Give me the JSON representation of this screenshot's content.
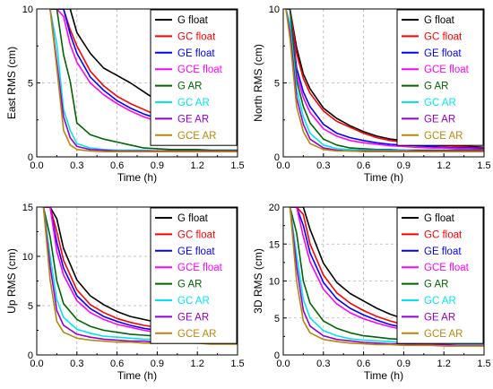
{
  "series_styles": [
    {
      "name": "G float",
      "color": "#000000"
    },
    {
      "name": "GC float",
      "color": "#ff0000"
    },
    {
      "name": "GE float",
      "color": "#0000ff"
    },
    {
      "name": "GCE float",
      "color": "#ff00ff"
    },
    {
      "name": "G AR",
      "color": "#006400"
    },
    {
      "name": "GC AR",
      "color": "#00e5ee"
    },
    {
      "name": "GE AR",
      "color": "#9400d3"
    },
    {
      "name": "GCE AR",
      "color": "#b8860b"
    }
  ],
  "chart_data": [
    {
      "type": "line",
      "title": "",
      "xlabel": "Time (h)",
      "ylabel": "East RMS (cm)",
      "xlim": [
        0,
        1.5
      ],
      "ylim": [
        0,
        10
      ],
      "xticks": [
        "0.0",
        "0.3",
        "0.6",
        "0.9",
        "1.2",
        "1.5"
      ],
      "yticks": [
        "0",
        "5",
        "10"
      ],
      "xtick_values": [
        0,
        0.3,
        0.6,
        0.9,
        1.2,
        1.5
      ],
      "ytick_values": [
        0,
        5,
        10
      ],
      "grid": true,
      "legend": "top-right",
      "x": [
        0.1,
        0.15,
        0.2,
        0.25,
        0.3,
        0.4,
        0.5,
        0.6,
        0.7,
        0.8,
        0.9,
        1.0,
        1.1,
        1.2,
        1.3,
        1.4,
        1.5
      ],
      "series": [
        {
          "name": "G float",
          "values": [
            10,
            10,
            10,
            10,
            8.4,
            7.0,
            6.0,
            5.5,
            5.0,
            4.4,
            3.8,
            3.3,
            2.9,
            2.6,
            2.3,
            2.0,
            1.8
          ]
        },
        {
          "name": "GC float",
          "values": [
            10,
            10,
            10,
            8.6,
            7.5,
            5.8,
            4.8,
            4.1,
            3.6,
            3.2,
            2.8,
            2.5,
            2.2,
            2.0,
            1.8,
            1.6,
            1.5
          ]
        },
        {
          "name": "GE float",
          "values": [
            10,
            10,
            10,
            8.3,
            7.0,
            5.4,
            4.5,
            3.8,
            3.3,
            2.9,
            2.6,
            2.3,
            2.1,
            1.9,
            1.7,
            1.5,
            1.4
          ]
        },
        {
          "name": "GCE float",
          "values": [
            10,
            10,
            9.5,
            7.6,
            6.4,
            5.0,
            4.2,
            3.6,
            3.1,
            2.7,
            2.4,
            2.1,
            1.9,
            1.7,
            1.6,
            1.4,
            1.3
          ]
        },
        {
          "name": "G AR",
          "values": [
            10,
            10,
            6.9,
            5.1,
            2.3,
            1.5,
            1.2,
            1.0,
            0.8,
            0.6,
            0.55,
            0.5,
            0.5,
            0.5,
            0.45,
            0.45,
            0.45
          ]
        },
        {
          "name": "GC AR",
          "values": [
            10,
            7.6,
            3.2,
            1.8,
            0.9,
            0.6,
            0.5,
            0.45,
            0.45,
            0.45,
            0.4,
            0.4,
            0.4,
            0.4,
            0.4,
            0.4,
            0.4
          ]
        },
        {
          "name": "GE AR",
          "values": [
            10,
            6.4,
            2.7,
            1.3,
            0.7,
            0.5,
            0.45,
            0.4,
            0.4,
            0.4,
            0.4,
            0.4,
            0.4,
            0.4,
            0.4,
            0.4,
            0.4
          ]
        },
        {
          "name": "GCE AR",
          "values": [
            10,
            6.0,
            1.8,
            0.8,
            0.5,
            0.4,
            0.35,
            0.35,
            0.35,
            0.35,
            0.35,
            0.35,
            0.35,
            0.35,
            0.35,
            0.35,
            0.35
          ]
        }
      ]
    },
    {
      "type": "line",
      "title": "",
      "xlabel": "Time (h)",
      "ylabel": "North RMS (cm)",
      "xlim": [
        0,
        1.5
      ],
      "ylim": [
        0,
        10
      ],
      "xticks": [
        "0.0",
        "0.3",
        "0.6",
        "0.9",
        "1.2",
        "1.5"
      ],
      "yticks": [
        "0",
        "5",
        "10"
      ],
      "xtick_values": [
        0,
        0.3,
        0.6,
        0.9,
        1.2,
        1.5
      ],
      "ytick_values": [
        0,
        5,
        10
      ],
      "grid": true,
      "legend": "top-right",
      "x": [
        0.02,
        0.05,
        0.1,
        0.15,
        0.2,
        0.3,
        0.4,
        0.5,
        0.6,
        0.7,
        0.8,
        0.9,
        1.0,
        1.1,
        1.2,
        1.3,
        1.4,
        1.5
      ],
      "series": [
        {
          "name": "G float",
          "values": [
            10,
            10,
            7.4,
            5.6,
            4.6,
            3.3,
            2.6,
            2.1,
            1.7,
            1.4,
            1.2,
            1.1,
            1.0,
            0.9,
            0.8,
            0.75,
            0.7,
            0.65
          ]
        },
        {
          "name": "GC float",
          "values": [
            10,
            10,
            7.0,
            5.3,
            4.3,
            3.1,
            2.4,
            2.0,
            1.6,
            1.3,
            1.1,
            1.0,
            0.9,
            0.8,
            0.75,
            0.7,
            0.65,
            0.6
          ]
        },
        {
          "name": "GE float",
          "values": [
            10,
            10,
            6.0,
            4.4,
            3.4,
            2.2,
            1.6,
            1.3,
            1.1,
            0.95,
            0.85,
            0.8,
            0.75,
            0.7,
            0.65,
            0.6,
            0.6,
            0.55
          ]
        },
        {
          "name": "GCE float",
          "values": [
            10,
            10,
            5.6,
            4.0,
            3.0,
            1.9,
            1.4,
            1.1,
            0.95,
            0.85,
            0.75,
            0.7,
            0.65,
            0.6,
            0.6,
            0.55,
            0.55,
            0.5
          ]
        },
        {
          "name": "G AR",
          "values": [
            10,
            10,
            5.2,
            3.4,
            2.3,
            1.2,
            0.8,
            0.6,
            0.55,
            0.5,
            0.5,
            0.45,
            0.45,
            0.45,
            0.45,
            0.45,
            0.45,
            0.45
          ]
        },
        {
          "name": "GC AR",
          "values": [
            10,
            9.0,
            4.6,
            2.7,
            1.6,
            0.8,
            0.55,
            0.5,
            0.45,
            0.45,
            0.45,
            0.45,
            0.4,
            0.4,
            0.4,
            0.4,
            0.4,
            0.4
          ]
        },
        {
          "name": "GE AR",
          "values": [
            10,
            8.5,
            4.0,
            2.2,
            1.2,
            0.6,
            0.45,
            0.4,
            0.4,
            0.4,
            0.4,
            0.4,
            0.4,
            0.4,
            0.4,
            0.4,
            0.4,
            0.4
          ]
        },
        {
          "name": "GCE AR",
          "values": [
            10,
            8.0,
            3.4,
            1.7,
            0.9,
            0.5,
            0.4,
            0.4,
            0.35,
            0.35,
            0.35,
            0.35,
            0.35,
            0.35,
            0.35,
            0.35,
            0.35,
            0.35
          ]
        }
      ]
    },
    {
      "type": "line",
      "title": "",
      "xlabel": "Time (h)",
      "ylabel": "Up RMS (cm)",
      "xlim": [
        0,
        1.5
      ],
      "ylim": [
        0,
        15
      ],
      "xticks": [
        "0.0",
        "0.3",
        "0.6",
        "0.9",
        "1.2",
        "1.5"
      ],
      "yticks": [
        "0",
        "5",
        "10",
        "15"
      ],
      "xtick_values": [
        0,
        0.3,
        0.6,
        0.9,
        1.2,
        1.5
      ],
      "ytick_values": [
        0,
        5,
        10,
        15
      ],
      "grid": true,
      "legend": "top-right",
      "x": [
        0.05,
        0.1,
        0.15,
        0.2,
        0.3,
        0.4,
        0.5,
        0.6,
        0.7,
        0.8,
        0.9,
        1.0,
        1.1,
        1.2,
        1.3,
        1.4,
        1.5
      ],
      "series": [
        {
          "name": "G float",
          "values": [
            15,
            15,
            13.8,
            10.8,
            7.6,
            6.0,
            5.1,
            4.4,
            3.9,
            3.6,
            3.3,
            3.1,
            2.9,
            2.8,
            2.7,
            2.6,
            2.5
          ]
        },
        {
          "name": "GC float",
          "values": [
            15,
            15,
            12.5,
            9.6,
            6.6,
            5.1,
            4.3,
            3.7,
            3.3,
            3.0,
            2.8,
            2.6,
            2.5,
            2.4,
            2.3,
            2.2,
            2.1
          ]
        },
        {
          "name": "GE float",
          "values": [
            15,
            15,
            11.4,
            8.8,
            6.0,
            4.7,
            3.9,
            3.4,
            3.0,
            2.7,
            2.5,
            2.3,
            2.2,
            2.1,
            2.0,
            1.9,
            1.8
          ]
        },
        {
          "name": "GCE float",
          "values": [
            15,
            15,
            10.5,
            8.1,
            5.5,
            4.3,
            3.6,
            3.1,
            2.8,
            2.5,
            2.3,
            2.2,
            2.1,
            2.0,
            1.9,
            1.8,
            1.7
          ]
        },
        {
          "name": "G AR",
          "values": [
            15,
            12.0,
            7.5,
            5.2,
            3.6,
            2.9,
            2.5,
            2.3,
            2.1,
            2.0,
            1.9,
            1.8,
            1.8,
            1.7,
            1.7,
            1.6,
            1.6
          ]
        },
        {
          "name": "GC AR",
          "values": [
            15,
            10.0,
            5.6,
            3.8,
            2.6,
            2.2,
            1.9,
            1.8,
            1.7,
            1.6,
            1.6,
            1.5,
            1.5,
            1.5,
            1.4,
            1.4,
            1.4
          ]
        },
        {
          "name": "GE AR",
          "values": [
            15,
            9.0,
            4.5,
            3.0,
            2.1,
            1.8,
            1.6,
            1.5,
            1.4,
            1.4,
            1.3,
            1.3,
            1.3,
            1.3,
            1.2,
            1.2,
            1.2
          ]
        },
        {
          "name": "GCE AR",
          "values": [
            15,
            7.6,
            3.4,
            2.3,
            1.7,
            1.5,
            1.4,
            1.3,
            1.3,
            1.2,
            1.2,
            1.2,
            1.2,
            1.2,
            1.1,
            1.1,
            1.1
          ]
        }
      ]
    },
    {
      "type": "line",
      "title": "",
      "xlabel": "Time (h)",
      "ylabel": "3D RMS (cm)",
      "xlim": [
        0,
        1.5
      ],
      "ylim": [
        0,
        20
      ],
      "xticks": [
        "0.0",
        "0.3",
        "0.6",
        "0.9",
        "1.2",
        "1.5"
      ],
      "yticks": [
        "0",
        "5",
        "10",
        "15",
        "20"
      ],
      "xtick_values": [
        0,
        0.3,
        0.6,
        0.9,
        1.2,
        1.5
      ],
      "ytick_values": [
        0,
        5,
        10,
        15,
        20
      ],
      "grid": true,
      "legend": "top-right",
      "x": [
        0.05,
        0.1,
        0.15,
        0.2,
        0.3,
        0.4,
        0.5,
        0.6,
        0.7,
        0.8,
        0.9,
        1.0,
        1.1,
        1.2,
        1.3,
        1.4,
        1.5
      ],
      "series": [
        {
          "name": "G float",
          "values": [
            20,
            20,
            20,
            17.0,
            12.4,
            9.8,
            8.3,
            7.3,
            6.3,
            5.5,
            4.9,
            4.3,
            3.9,
            3.6,
            3.3,
            3.1,
            2.9
          ]
        },
        {
          "name": "GC float",
          "values": [
            20,
            20,
            19.0,
            15.0,
            10.8,
            8.4,
            7.0,
            6.0,
            5.2,
            4.6,
            4.1,
            3.7,
            3.4,
            3.1,
            2.9,
            2.7,
            2.6
          ]
        },
        {
          "name": "GE float",
          "values": [
            20,
            20,
            17.5,
            13.8,
            9.8,
            7.6,
            6.3,
            5.4,
            4.7,
            4.1,
            3.7,
            3.3,
            3.0,
            2.8,
            2.6,
            2.5,
            2.4
          ]
        },
        {
          "name": "GCE float",
          "values": [
            20,
            20,
            16.0,
            12.6,
            8.9,
            6.9,
            5.7,
            4.9,
            4.3,
            3.8,
            3.4,
            3.1,
            2.9,
            2.7,
            2.5,
            2.4,
            2.3
          ]
        },
        {
          "name": "G AR",
          "values": [
            20,
            16.5,
            10.0,
            7.0,
            4.6,
            3.6,
            3.0,
            2.6,
            2.4,
            2.2,
            2.1,
            2.0,
            1.9,
            1.8,
            1.8,
            1.7,
            1.7
          ]
        },
        {
          "name": "GC AR",
          "values": [
            20,
            13.5,
            7.5,
            5.0,
            3.3,
            2.6,
            2.2,
            2.0,
            1.9,
            1.8,
            1.7,
            1.6,
            1.6,
            1.6,
            1.5,
            1.5,
            1.5
          ]
        },
        {
          "name": "GE AR",
          "values": [
            20,
            12.0,
            6.0,
            3.9,
            2.6,
            2.1,
            1.9,
            1.7,
            1.6,
            1.5,
            1.5,
            1.4,
            1.4,
            1.4,
            1.3,
            1.3,
            1.3
          ]
        },
        {
          "name": "GCE AR",
          "values": [
            20,
            10.0,
            4.6,
            3.0,
            2.1,
            1.8,
            1.6,
            1.5,
            1.4,
            1.4,
            1.3,
            1.3,
            1.3,
            1.2,
            1.2,
            1.2,
            1.2
          ]
        }
      ]
    }
  ]
}
